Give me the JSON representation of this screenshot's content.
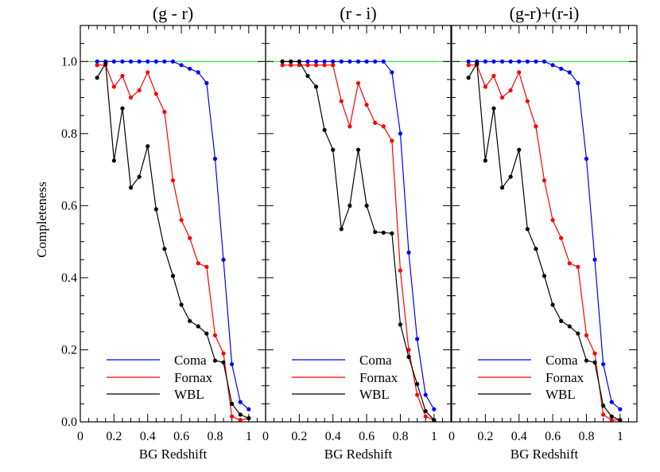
{
  "chart_data": {
    "type": "line",
    "ylabel": "Completeness",
    "xlabel": "BG Redshift",
    "xlim": [
      0,
      1.1
    ],
    "ylim": [
      0,
      1.1
    ],
    "x_ticks": [
      "0",
      "0.2",
      "0.4",
      "0.6",
      "0.8",
      "1"
    ],
    "y_ticks": [
      "0.0",
      "0.2",
      "0.4",
      "0.6",
      "0.8",
      "1.0"
    ],
    "reference_line": {
      "y": 1.0,
      "color": "#00dd00"
    },
    "legend": {
      "position": "bottom-left",
      "entries": [
        "Coma",
        "Fornax",
        "WBL"
      ]
    },
    "series_colors": {
      "Coma": "#0000ff",
      "Fornax": "#ff0000",
      "WBL": "#000000"
    },
    "panels": [
      {
        "title": "(g - r)",
        "series": [
          {
            "name": "Coma",
            "x": [
              0.1,
              0.15,
              0.2,
              0.25,
              0.3,
              0.35,
              0.4,
              0.45,
              0.5,
              0.55,
              0.6,
              0.65,
              0.7,
              0.75,
              0.8,
              0.85,
              0.9,
              0.95,
              1.0
            ],
            "y": [
              1.0,
              1.0,
              1.0,
              1.0,
              1.0,
              1.0,
              1.0,
              1.0,
              1.0,
              1.0,
              0.99,
              0.98,
              0.97,
              0.94,
              0.73,
              0.45,
              0.16,
              0.055,
              0.035
            ]
          },
          {
            "name": "Fornax",
            "x": [
              0.1,
              0.15,
              0.2,
              0.25,
              0.3,
              0.35,
              0.4,
              0.45,
              0.5,
              0.55,
              0.6,
              0.65,
              0.7,
              0.75,
              0.8,
              0.85,
              0.9,
              0.95,
              1.0
            ],
            "y": [
              0.99,
              0.99,
              0.93,
              0.96,
              0.9,
              0.92,
              0.97,
              0.91,
              0.86,
              0.67,
              0.56,
              0.51,
              0.44,
              0.43,
              0.24,
              0.19,
              0.015,
              0.005,
              0.01
            ]
          },
          {
            "name": "WBL",
            "x": [
              0.1,
              0.15,
              0.2,
              0.25,
              0.3,
              0.35,
              0.4,
              0.45,
              0.5,
              0.55,
              0.6,
              0.65,
              0.7,
              0.75,
              0.8,
              0.85,
              0.9,
              0.95,
              1.0
            ],
            "y": [
              0.955,
              0.995,
              0.725,
              0.87,
              0.65,
              0.68,
              0.765,
              0.59,
              0.48,
              0.405,
              0.325,
              0.28,
              0.265,
              0.245,
              0.17,
              0.165,
              0.05,
              0.02,
              0.01
            ]
          }
        ]
      },
      {
        "title": "(r - i)",
        "series": [
          {
            "name": "Coma",
            "x": [
              0.1,
              0.15,
              0.2,
              0.25,
              0.3,
              0.35,
              0.4,
              0.45,
              0.5,
              0.55,
              0.6,
              0.65,
              0.7,
              0.75,
              0.8,
              0.85,
              0.9,
              0.95,
              1.0
            ],
            "y": [
              1.0,
              1.0,
              1.0,
              1.0,
              1.0,
              1.0,
              1.0,
              1.0,
              1.0,
              1.0,
              1.0,
              1.0,
              1.0,
              0.97,
              0.8,
              0.47,
              0.23,
              0.075,
              0.035
            ]
          },
          {
            "name": "Fornax",
            "x": [
              0.1,
              0.15,
              0.2,
              0.25,
              0.3,
              0.35,
              0.4,
              0.45,
              0.5,
              0.55,
              0.6,
              0.65,
              0.7,
              0.75,
              0.8,
              0.85,
              0.9,
              0.95,
              1.0
            ],
            "y": [
              0.99,
              0.99,
              0.99,
              0.99,
              0.99,
              0.99,
              0.99,
              0.89,
              0.82,
              0.94,
              0.88,
              0.83,
              0.82,
              0.78,
              0.42,
              0.2,
              0.075,
              0.015,
              0.005
            ]
          },
          {
            "name": "WBL",
            "x": [
              0.1,
              0.15,
              0.2,
              0.25,
              0.3,
              0.35,
              0.4,
              0.45,
              0.5,
              0.55,
              0.6,
              0.65,
              0.7,
              0.75,
              0.8,
              0.85,
              0.9,
              0.95,
              1.0
            ],
            "y": [
              1.0,
              1.0,
              1.0,
              0.96,
              0.93,
              0.81,
              0.755,
              0.535,
              0.6,
              0.755,
              0.6,
              0.527,
              0.525,
              0.523,
              0.27,
              0.18,
              0.105,
              0.03,
              0.005
            ]
          }
        ]
      },
      {
        "title": "(g-r)+(r-i)",
        "series": [
          {
            "name": "Coma",
            "x": [
              0.1,
              0.15,
              0.2,
              0.25,
              0.3,
              0.35,
              0.4,
              0.45,
              0.5,
              0.55,
              0.6,
              0.65,
              0.7,
              0.75,
              0.8,
              0.85,
              0.9,
              0.95,
              1.0
            ],
            "y": [
              1.0,
              1.0,
              1.0,
              1.0,
              1.0,
              1.0,
              1.0,
              1.0,
              1.0,
              1.0,
              0.99,
              0.98,
              0.97,
              0.94,
              0.73,
              0.45,
              0.16,
              0.055,
              0.035
            ]
          },
          {
            "name": "Fornax",
            "x": [
              0.1,
              0.15,
              0.2,
              0.25,
              0.3,
              0.35,
              0.4,
              0.45,
              0.5,
              0.55,
              0.6,
              0.65,
              0.7,
              0.75,
              0.8,
              0.85,
              0.9,
              0.95,
              1.0
            ],
            "y": [
              0.99,
              0.99,
              0.93,
              0.96,
              0.9,
              0.92,
              0.97,
              0.89,
              0.82,
              0.67,
              0.56,
              0.51,
              0.44,
              0.43,
              0.24,
              0.19,
              0.02,
              0.005,
              0.005
            ]
          },
          {
            "name": "WBL",
            "x": [
              0.1,
              0.15,
              0.2,
              0.25,
              0.3,
              0.35,
              0.4,
              0.45,
              0.5,
              0.55,
              0.6,
              0.65,
              0.7,
              0.75,
              0.8,
              0.85,
              0.9,
              0.95,
              1.0
            ],
            "y": [
              0.955,
              0.995,
              0.725,
              0.87,
              0.65,
              0.68,
              0.755,
              0.535,
              0.48,
              0.405,
              0.325,
              0.28,
              0.265,
              0.245,
              0.17,
              0.165,
              0.045,
              0.015,
              0.005
            ]
          }
        ]
      }
    ]
  }
}
